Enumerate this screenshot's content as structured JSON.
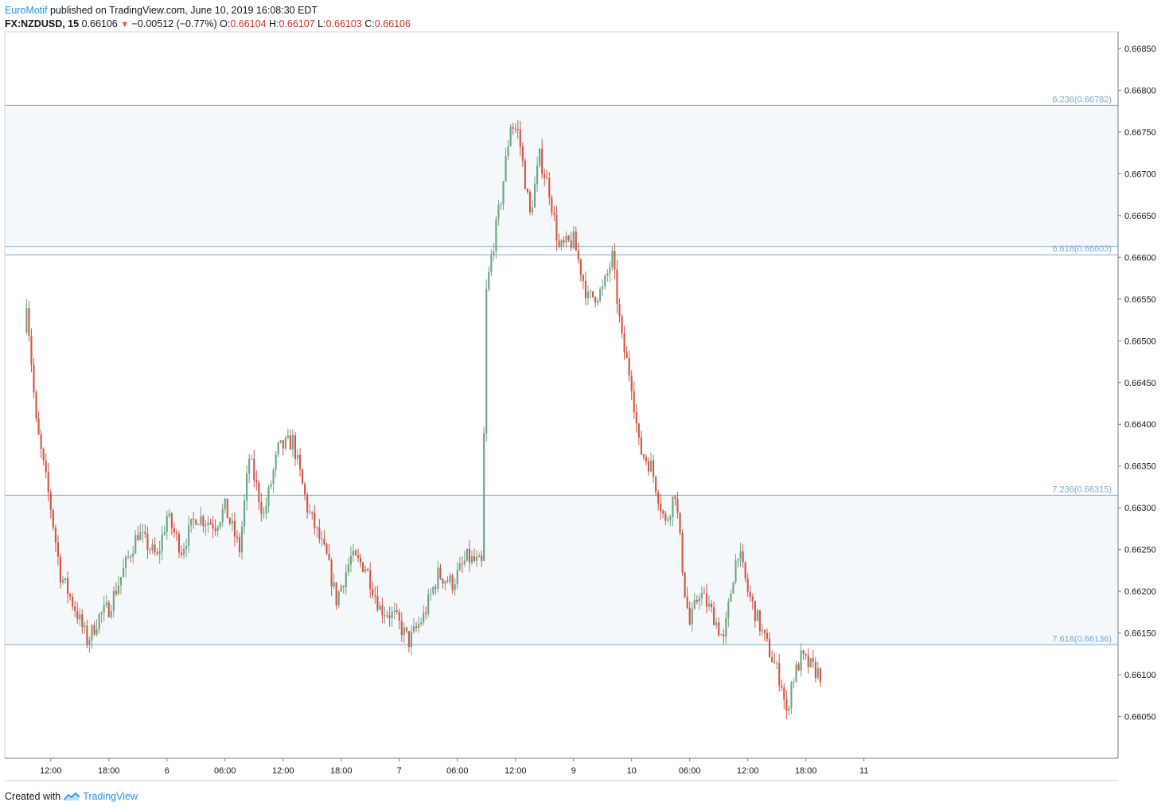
{
  "header": {
    "author": "EuroMotif",
    "published": "published on TradingView.com, June 10, 2019 16:08:30 EDT",
    "symbol": "FX:NZDUSD, 15",
    "last": "0.66106",
    "change": "−0.00512 (−0.77%)",
    "o_label": "O:",
    "o": "0.66104",
    "h_label": "H:",
    "h": "0.66107",
    "l_label": "L:",
    "l": "0.66103",
    "c_label": "C:",
    "c": "0.66106"
  },
  "footer": {
    "created": "Created with",
    "brand": "TradingView"
  },
  "colors": {
    "up": "#6ba583",
    "down": "#d75442",
    "fib_line": "#7ba7d4",
    "fib_label": "#7ba7d4",
    "band_fill": "#f5f8fb",
    "axis_text": "#131722",
    "author": "#2196f3",
    "ohlc": "#d32f2f"
  },
  "chart_data": {
    "type": "candlestick",
    "symbol": "FX:NZDUSD",
    "interval": "15",
    "ylim": [
      0.66,
      0.6687
    ],
    "y_ticks": [
      "0.66850",
      "0.66800",
      "0.66750",
      "0.66700",
      "0.66650",
      "0.66600",
      "0.66550",
      "0.66500",
      "0.66450",
      "0.66400",
      "0.66350",
      "0.66300",
      "0.66250",
      "0.66200",
      "0.66150",
      "0.66100",
      "0.66050"
    ],
    "x_range_hours": [
      -4.75,
      110.25
    ],
    "x_ticks": [
      {
        "label": "12:00",
        "h": 0
      },
      {
        "label": "18:00",
        "h": 6
      },
      {
        "label": "6",
        "h": 12
      },
      {
        "label": "06:00",
        "h": 18
      },
      {
        "label": "12:00",
        "h": 24
      },
      {
        "label": "18:00",
        "h": 30
      },
      {
        "label": "7",
        "h": 36
      },
      {
        "label": "06:00",
        "h": 42
      },
      {
        "label": "12:00",
        "h": 48
      },
      {
        "label": "9",
        "h": 54
      },
      {
        "label": "10",
        "h": 60
      },
      {
        "label": "06:00",
        "h": 66
      },
      {
        "label": "12:00",
        "h": 72
      },
      {
        "label": "18:00",
        "h": 78
      },
      {
        "label": "11",
        "h": 84
      }
    ],
    "fib_levels": [
      {
        "label": "6.236(0.66782)",
        "value": 0.66782
      },
      {
        "label": "6.618(0.66603)",
        "value": 0.66603
      },
      {
        "label": "7.236(0.66315)",
        "value": 0.66315
      },
      {
        "label": "7.618(0.66136)",
        "value": 0.66136
      }
    ],
    "extra_line": 0.66613,
    "shaded_bands": [
      [
        0.66613,
        0.66782
      ],
      [
        0.66136,
        0.66315
      ]
    ],
    "candle_width_hours": 0.16,
    "key_closes": [
      {
        "h": -2.5,
        "c": 0.6655
      },
      {
        "h": -1.5,
        "c": 0.664
      },
      {
        "h": 0,
        "c": 0.663
      },
      {
        "h": 1,
        "c": 0.6622
      },
      {
        "h": 2.5,
        "c": 0.6618
      },
      {
        "h": 3.8,
        "c": 0.6614
      },
      {
        "h": 5,
        "c": 0.6617
      },
      {
        "h": 6,
        "c": 0.6618
      },
      {
        "h": 7,
        "c": 0.6621
      },
      {
        "h": 9,
        "c": 0.6627
      },
      {
        "h": 11,
        "c": 0.6624
      },
      {
        "h": 12,
        "c": 0.6629
      },
      {
        "h": 13.5,
        "c": 0.6625
      },
      {
        "h": 15,
        "c": 0.6629
      },
      {
        "h": 17,
        "c": 0.6628
      },
      {
        "h": 18,
        "c": 0.663
      },
      {
        "h": 19.5,
        "c": 0.6625
      },
      {
        "h": 20.5,
        "c": 0.6636
      },
      {
        "h": 22,
        "c": 0.6629
      },
      {
        "h": 23.5,
        "c": 0.6637
      },
      {
        "h": 25,
        "c": 0.6638
      },
      {
        "h": 26.5,
        "c": 0.663
      },
      {
        "h": 28.5,
        "c": 0.6624
      },
      {
        "h": 29.5,
        "c": 0.6619
      },
      {
        "h": 31,
        "c": 0.6624
      },
      {
        "h": 32.5,
        "c": 0.6623
      },
      {
        "h": 34,
        "c": 0.6618
      },
      {
        "h": 35.5,
        "c": 0.6617
      },
      {
        "h": 37,
        "c": 0.6614
      },
      {
        "h": 38.5,
        "c": 0.6617
      },
      {
        "h": 40,
        "c": 0.6622
      },
      {
        "h": 41.5,
        "c": 0.6621
      },
      {
        "h": 43,
        "c": 0.6624
      },
      {
        "h": 44.7,
        "c": 0.6623
      },
      {
        "h": 44.8,
        "c": 0.6654
      },
      {
        "h": 45.5,
        "c": 0.666
      },
      {
        "h": 46.5,
        "c": 0.6667
      },
      {
        "h": 47.5,
        "c": 0.6676
      },
      {
        "h": 48.3,
        "c": 0.6675
      },
      {
        "h": 49.5,
        "c": 0.6665
      },
      {
        "h": 50.5,
        "c": 0.6672
      },
      {
        "h": 51.5,
        "c": 0.6668
      },
      {
        "h": 52.5,
        "c": 0.6661
      },
      {
        "h": 54,
        "c": 0.6662
      },
      {
        "h": 55.5,
        "c": 0.6655
      },
      {
        "h": 57,
        "c": 0.6656
      },
      {
        "h": 58,
        "c": 0.666
      },
      {
        "h": 59,
        "c": 0.665
      },
      {
        "h": 60,
        "c": 0.6645
      },
      {
        "h": 60.8,
        "c": 0.6637
      },
      {
        "h": 62,
        "c": 0.6635
      },
      {
        "h": 63.5,
        "c": 0.6628
      },
      {
        "h": 64.5,
        "c": 0.6632
      },
      {
        "h": 65.5,
        "c": 0.662
      },
      {
        "h": 66,
        "c": 0.6616
      },
      {
        "h": 67,
        "c": 0.662
      },
      {
        "h": 68.5,
        "c": 0.6617
      },
      {
        "h": 69.5,
        "c": 0.6614
      },
      {
        "h": 70.5,
        "c": 0.6622
      },
      {
        "h": 71,
        "c": 0.6625
      },
      {
        "h": 72,
        "c": 0.662
      },
      {
        "h": 73.5,
        "c": 0.6615
      },
      {
        "h": 74.5,
        "c": 0.6612
      },
      {
        "h": 75.5,
        "c": 0.6609
      },
      {
        "h": 76,
        "c": 0.6605
      },
      {
        "h": 76.5,
        "c": 0.6609
      },
      {
        "h": 77.5,
        "c": 0.6612
      },
      {
        "h": 78.5,
        "c": 0.6611
      },
      {
        "h": 79.5,
        "c": 0.661
      }
    ]
  }
}
